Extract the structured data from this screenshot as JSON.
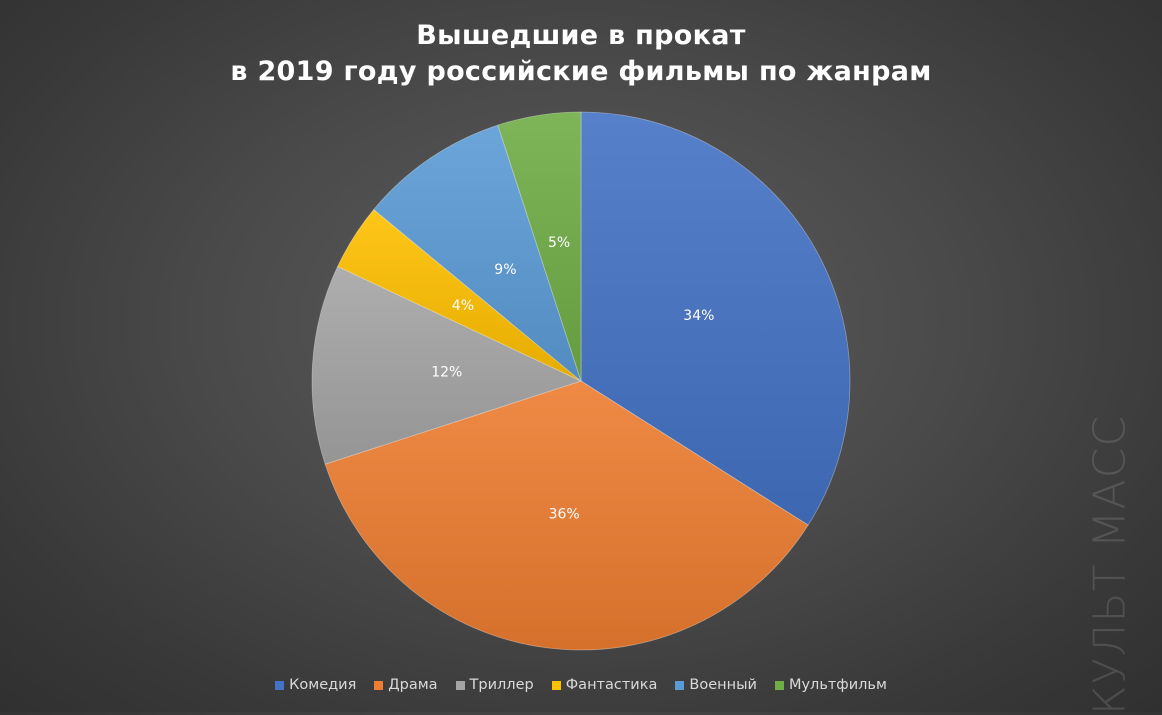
{
  "title": {
    "line1": "Вышедшие в прокат",
    "line2": "в 2019 году российские фильмы по жанрам"
  },
  "chart_data": {
    "type": "pie",
    "title": "Вышедшие в прокат в 2019 году российские фильмы по жанрам",
    "start": "12 o'clock",
    "direction": "clockwise",
    "legend_position": "bottom",
    "slices": [
      {
        "label": "Комедия",
        "value": 34,
        "display": "34%",
        "color": "#4472c4"
      },
      {
        "label": "Драма",
        "value": 36,
        "display": "36%",
        "color": "#ed7d31"
      },
      {
        "label": "Триллер",
        "value": 12,
        "display": "12%",
        "color": "#a5a5a5"
      },
      {
        "label": "Фантастика",
        "value": 4,
        "display": "4%",
        "color": "#ffc000"
      },
      {
        "label": "Военный",
        "value": 9,
        "display": "9%",
        "color": "#5b9bd5"
      },
      {
        "label": "Мультфильм",
        "value": 5,
        "display": "5%",
        "color": "#70ad47"
      }
    ]
  },
  "watermark": "КУЛЬТ МАСС"
}
